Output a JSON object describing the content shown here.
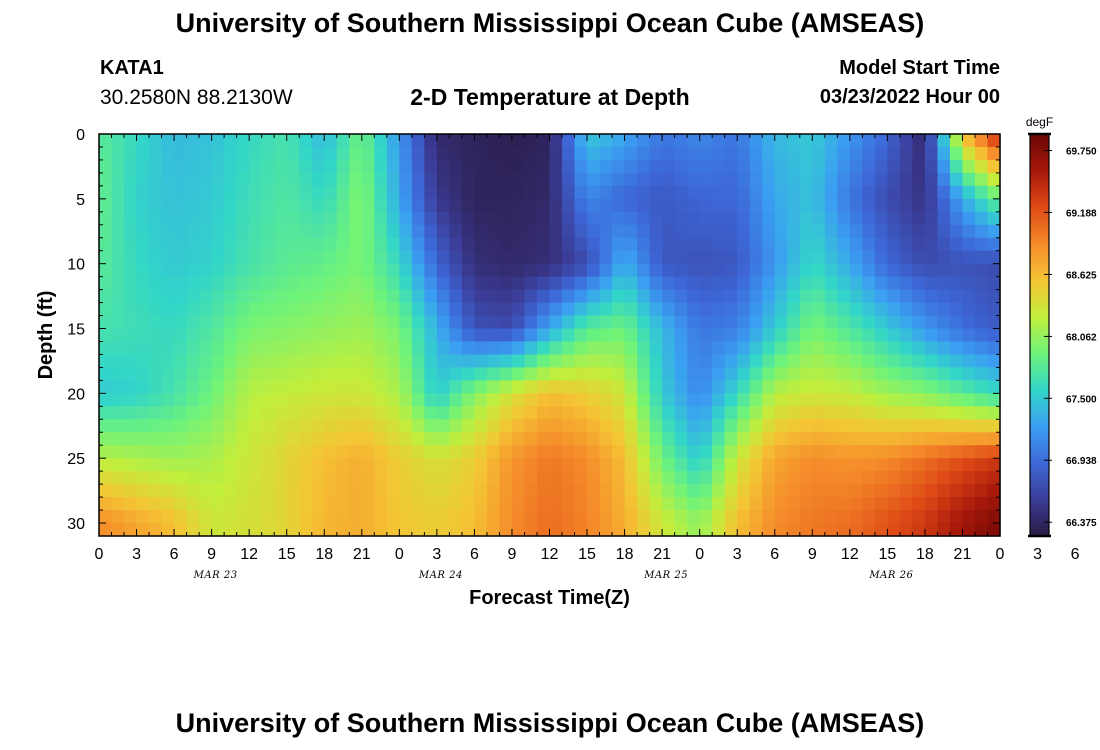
{
  "page": {
    "title": "University of Southern Mississippi Ocean Cube (AMSEAS)",
    "bottom_title": "University of Southern Mississippi Ocean Cube (AMSEAS)"
  },
  "station": {
    "id": "KATA1",
    "coords": "30.2580N  88.2130W"
  },
  "model": {
    "start_label": "Model Start Time",
    "start_value": "03/23/2022 Hour 00"
  },
  "chart_data": {
    "type": "heatmap",
    "title": "2-D Temperature at Depth",
    "xlabel": "Forecast Time(Z)",
    "ylabel": "Depth (ft)",
    "x_range_hours": [
      0,
      72
    ],
    "y_range_ft": [
      0,
      31
    ],
    "y_inverted": true,
    "x_tick_labels": [
      "0",
      "3",
      "6",
      "9",
      "12",
      "15",
      "18",
      "21",
      "0",
      "3",
      "6",
      "9",
      "12",
      "15",
      "18",
      "21",
      "0",
      "3",
      "6",
      "9",
      "12",
      "15",
      "18",
      "21",
      "0",
      "3",
      "6",
      "9",
      "12",
      "15",
      "18",
      "21",
      "0"
    ],
    "y_tick_values": [
      0,
      5,
      10,
      15,
      20,
      25,
      30
    ],
    "y_tick_labels": [
      "0",
      "5",
      "10",
      "15",
      "20",
      "25",
      "30"
    ],
    "date_labels": [
      {
        "hour": 9,
        "label": "MAR 23"
      },
      {
        "hour": 27,
        "label": "MAR 24"
      },
      {
        "hour": 45,
        "label": "MAR 25"
      },
      {
        "hour": 63,
        "label": "MAR 26"
      }
    ],
    "colorbar": {
      "unit": "degF",
      "min": 66.25,
      "max": 69.9,
      "tick_values": [
        69.75,
        69.188,
        68.625,
        68.062,
        67.5,
        66.938,
        66.375
      ],
      "tick_labels": [
        "69.750",
        "69.188",
        "68.625",
        "68.062",
        "67.500",
        "66.938",
        "66.375"
      ],
      "colors": [
        "#2a1a45",
        "#3b3c96",
        "#3d68d8",
        "#3b9ff2",
        "#33d6c8",
        "#6ef37a",
        "#c2ee3c",
        "#f5c435",
        "#f58b2a",
        "#de4a16",
        "#a6170a",
        "#6a0704"
      ]
    },
    "time_hours": [
      0,
      3,
      6,
      9,
      12,
      15,
      18,
      21,
      24,
      27,
      30,
      33,
      36,
      39,
      42,
      45,
      48,
      51,
      54,
      57,
      60,
      63,
      66,
      69,
      72
    ],
    "depth_ft": [
      0,
      5,
      10,
      15,
      20,
      25,
      30
    ],
    "temperature_degF": [
      [
        67.8,
        67.6,
        67.4,
        67.45,
        67.6,
        67.7,
        67.4,
        67.9,
        67.2,
        66.4,
        66.35,
        66.3,
        66.35,
        67.5,
        67.3,
        67.0,
        67.1,
        67.0,
        67.4,
        67.5,
        67.2,
        66.9,
        66.4,
        68.6,
        69.5
      ],
      [
        67.85,
        67.55,
        67.45,
        67.5,
        67.65,
        67.75,
        67.6,
        68.0,
        67.3,
        66.55,
        66.35,
        66.35,
        66.4,
        67.1,
        66.9,
        66.8,
        66.9,
        66.9,
        67.3,
        67.45,
        67.0,
        66.7,
        66.5,
        67.3,
        67.9
      ],
      [
        67.8,
        67.6,
        67.5,
        67.55,
        67.7,
        67.8,
        67.85,
        67.95,
        67.6,
        66.9,
        66.45,
        66.4,
        66.45,
        66.7,
        67.35,
        66.8,
        66.75,
        66.8,
        67.2,
        67.6,
        67.3,
        66.9,
        66.7,
        66.75,
        66.7
      ],
      [
        67.7,
        67.65,
        67.6,
        67.75,
        67.95,
        68.0,
        68.05,
        68.1,
        67.95,
        67.35,
        66.75,
        66.7,
        67.3,
        67.8,
        67.9,
        67.4,
        67.0,
        67.05,
        67.5,
        67.95,
        67.75,
        67.5,
        67.2,
        66.95,
        66.8
      ],
      [
        67.5,
        67.55,
        67.7,
        67.9,
        68.2,
        68.25,
        68.3,
        68.3,
        68.15,
        67.5,
        68.0,
        68.35,
        68.6,
        68.5,
        68.3,
        67.5,
        67.1,
        67.6,
        68.2,
        68.3,
        68.25,
        68.1,
        68.0,
        67.8,
        67.6
      ],
      [
        68.2,
        68.15,
        68.1,
        68.15,
        68.3,
        68.45,
        68.6,
        68.7,
        68.5,
        68.35,
        68.5,
        68.85,
        69.0,
        68.9,
        68.6,
        67.9,
        67.5,
        68.3,
        68.75,
        68.9,
        68.85,
        68.9,
        69.05,
        69.2,
        69.35
      ],
      [
        68.9,
        68.75,
        68.6,
        68.3,
        68.35,
        68.45,
        68.65,
        68.7,
        68.55,
        68.5,
        68.6,
        68.9,
        69.05,
        68.95,
        68.7,
        68.3,
        68.05,
        68.6,
        68.9,
        69.0,
        69.05,
        69.2,
        69.35,
        69.6,
        69.8
      ]
    ]
  }
}
